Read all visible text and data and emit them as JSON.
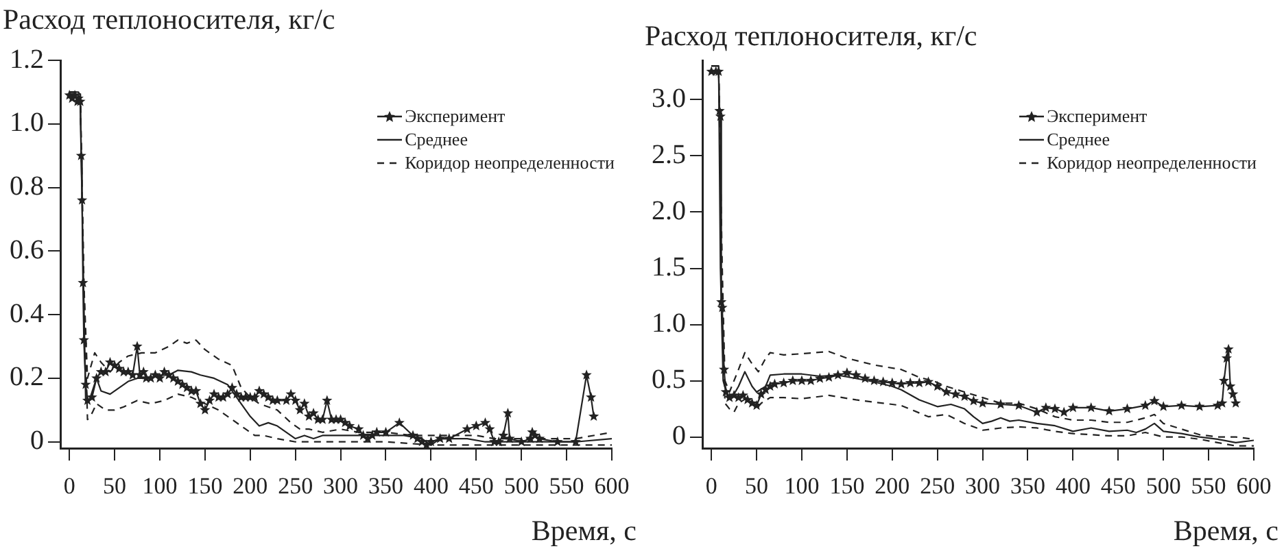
{
  "chart_data": [
    {
      "type": "line",
      "ylabel": "Расход теплоносителя, кг/с",
      "xlabel": "Время, с",
      "xlim": [
        -10,
        600
      ],
      "xticks": [
        0,
        50,
        100,
        150,
        200,
        250,
        300,
        350,
        400,
        450,
        500,
        550,
        600
      ],
      "ylim": [
        -0.02,
        1.2
      ],
      "yticks": [
        0,
        {
          "value": 0.2,
          "label": "0.2"
        },
        {
          "value": 0.4,
          "label": "0.4"
        },
        {
          "value": 0.6,
          "label": "0.6"
        },
        {
          "value": 0.8,
          "label": "0.8"
        },
        {
          "value": 1,
          "label": "1.0"
        },
        {
          "value": 1.2,
          "label": "1.2"
        }
      ],
      "grid": false,
      "legend": "top right",
      "series": [
        {
          "name": "Эксперимент",
          "color": "#222222",
          "marker": "star",
          "line_style": "solid",
          "x": [
            0,
            3,
            6,
            9,
            10,
            12,
            13,
            14,
            15,
            16,
            18,
            20,
            25,
            30,
            35,
            40,
            45,
            50,
            55,
            60,
            65,
            70,
            75,
            78,
            82,
            85,
            90,
            95,
            100,
            105,
            110,
            115,
            120,
            125,
            130,
            135,
            140,
            145,
            150,
            155,
            160,
            165,
            170,
            175,
            180,
            185,
            190,
            195,
            200,
            205,
            210,
            215,
            220,
            225,
            230,
            240,
            245,
            250,
            255,
            260,
            265,
            270,
            275,
            280,
            285,
            290,
            295,
            300,
            305,
            310,
            320,
            325,
            330,
            335,
            340,
            350,
            365,
            380,
            385,
            390,
            395,
            400,
            410,
            420,
            440,
            450,
            460,
            465,
            470,
            475,
            480,
            485,
            487,
            500,
            510,
            512,
            515,
            520,
            540,
            560,
            572,
            577,
            580
          ],
          "values": [
            1.09,
            1.08,
            1.09,
            1.07,
            1.08,
            1.07,
            0.9,
            0.76,
            0.5,
            0.32,
            0.18,
            0.13,
            0.14,
            0.2,
            0.22,
            0.22,
            0.25,
            0.24,
            0.23,
            0.22,
            0.22,
            0.21,
            0.3,
            0.21,
            0.22,
            0.2,
            0.2,
            0.21,
            0.2,
            0.22,
            0.21,
            0.2,
            0.19,
            0.18,
            0.17,
            0.16,
            0.16,
            0.12,
            0.1,
            0.13,
            0.15,
            0.14,
            0.14,
            0.15,
            0.17,
            0.15,
            0.14,
            0.14,
            0.14,
            0.14,
            0.16,
            0.15,
            0.14,
            0.13,
            0.13,
            0.13,
            0.15,
            0.13,
            0.1,
            0.12,
            0.08,
            0.09,
            0.07,
            0.07,
            0.13,
            0.07,
            0.07,
            0.07,
            0.06,
            0.05,
            0.04,
            0.02,
            0.01,
            0.02,
            0.03,
            0.03,
            0.06,
            0.02,
            0.01,
            0,
            -0.01,
            0,
            0.01,
            0.01,
            0.04,
            0.05,
            0.06,
            0.04,
            0,
            0,
            0.02,
            0.09,
            0.01,
            0,
            0.01,
            0.03,
            0.02,
            0.01,
            0,
            0,
            0.21,
            0.14,
            0.08
          ]
        },
        {
          "name": "Среднее",
          "color": "#222222",
          "marker": "none",
          "line_style": "solid",
          "x": [
            0,
            10,
            12,
            15,
            18,
            22,
            30,
            35,
            45,
            55,
            65,
            75,
            90,
            100,
            110,
            120,
            135,
            145,
            160,
            175,
            190,
            200,
            210,
            220,
            230,
            240,
            250,
            260,
            270,
            280,
            290,
            300,
            330,
            350,
            370,
            390,
            400,
            410,
            440,
            460,
            480,
            520,
            560,
            600
          ],
          "values": [
            1.1,
            1.1,
            1.09,
            0.6,
            0.13,
            0.13,
            0.2,
            0.16,
            0.15,
            0.17,
            0.19,
            0.2,
            0.2,
            0.21,
            0.21,
            0.225,
            0.22,
            0.21,
            0.2,
            0.18,
            0.12,
            0.08,
            0.05,
            0.06,
            0.05,
            0.03,
            0.01,
            0.02,
            0.01,
            0.02,
            0.02,
            0.02,
            0.02,
            0.02,
            0.02,
            0.01,
            -0.01,
            0.01,
            0.01,
            0,
            0,
            0,
            0,
            0.01
          ]
        },
        {
          "name": "Коридор неопределенности",
          "color": "#222222",
          "marker": "none",
          "line_style": "dashed",
          "x": [
            0,
            12,
            16,
            20,
            25,
            28,
            35,
            45,
            55,
            65,
            80,
            95,
            110,
            120,
            130,
            140,
            150,
            165,
            180,
            190,
            200,
            210,
            220,
            230,
            245,
            255,
            265,
            280,
            300,
            320,
            350,
            380,
            400,
            420,
            450,
            470,
            500,
            560,
            600
          ],
          "values": [
            1.1,
            1.1,
            0.5,
            0.2,
            0.25,
            0.28,
            0.25,
            0.22,
            0.25,
            0.27,
            0.28,
            0.28,
            0.3,
            0.32,
            0.31,
            0.32,
            0.29,
            0.26,
            0.24,
            0.17,
            0.14,
            0.12,
            0.11,
            0.1,
            0.06,
            0.04,
            0.04,
            0.03,
            0.04,
            0.03,
            0.03,
            0.02,
            0.02,
            0.02,
            0.02,
            0.01,
            0.01,
            0.01,
            0.03
          ]
        },
        {
          "color": "#222222",
          "marker": "none",
          "line_style": "dashed",
          "x": [
            0,
            12,
            16,
            20,
            25,
            30,
            40,
            50,
            60,
            75,
            90,
            105,
            120,
            135,
            150,
            165,
            180,
            195,
            205,
            215,
            230,
            250,
            270,
            300,
            350,
            400,
            450,
            500,
            600
          ],
          "values": [
            1.1,
            1.1,
            0.5,
            0.07,
            0.09,
            0.12,
            0.1,
            0.1,
            0.11,
            0.13,
            0.12,
            0.13,
            0.15,
            0.14,
            0.12,
            0.1,
            0.07,
            0.04,
            0.02,
            0.02,
            0.01,
            0,
            0,
            0,
            0,
            -0.01,
            -0.01,
            -0.01,
            -0.01
          ]
        }
      ]
    },
    {
      "type": "line",
      "ylabel": "Расход теплоносителя, кг/с",
      "xlabel": "Время, с",
      "xlim": [
        -10,
        600
      ],
      "xticks": [
        0,
        50,
        100,
        150,
        200,
        250,
        300,
        350,
        400,
        450,
        500,
        550,
        600
      ],
      "ylim": [
        -0.1,
        3.35
      ],
      "yticks": [
        0,
        0.5,
        {
          "value": 1,
          "label": "1.0"
        },
        1.5,
        {
          "value": 2,
          "label": "2.0"
        },
        2.5,
        {
          "value": 3,
          "label": "3.0"
        }
      ],
      "grid": false,
      "legend": "top right",
      "series": [
        {
          "name": "Эксперимент",
          "color": "#222222",
          "marker": "star",
          "line_style": "solid",
          "x": [
            0,
            5,
            8,
            9,
            10,
            11,
            12,
            14,
            16,
            20,
            25,
            30,
            35,
            40,
            45,
            50,
            55,
            60,
            65,
            70,
            80,
            90,
            100,
            110,
            120,
            130,
            140,
            150,
            160,
            170,
            180,
            190,
            200,
            210,
            220,
            230,
            240,
            250,
            260,
            270,
            280,
            290,
            300,
            320,
            340,
            360,
            370,
            380,
            390,
            400,
            420,
            440,
            460,
            480,
            490,
            500,
            520,
            540,
            560,
            565,
            567,
            570,
            572,
            574,
            577,
            580
          ],
          "values": [
            3.25,
            3.25,
            3.25,
            2.9,
            2.85,
            1.2,
            1.15,
            0.6,
            0.4,
            0.35,
            0.37,
            0.35,
            0.37,
            0.33,
            0.3,
            0.28,
            0.38,
            0.42,
            0.45,
            0.47,
            0.48,
            0.5,
            0.5,
            0.5,
            0.52,
            0.53,
            0.55,
            0.57,
            0.55,
            0.52,
            0.5,
            0.49,
            0.48,
            0.47,
            0.48,
            0.48,
            0.49,
            0.45,
            0.4,
            0.38,
            0.36,
            0.32,
            0.3,
            0.29,
            0.28,
            0.22,
            0.26,
            0.25,
            0.22,
            0.26,
            0.26,
            0.23,
            0.25,
            0.28,
            0.32,
            0.27,
            0.28,
            0.27,
            0.28,
            0.3,
            0.5,
            0.7,
            0.78,
            0.45,
            0.38,
            0.3
          ]
        },
        {
          "name": "Среднее",
          "color": "#222222",
          "marker": "none",
          "line_style": "solid",
          "x": [
            0,
            8,
            10,
            13,
            18,
            25,
            30,
            37,
            45,
            50,
            60,
            65,
            80,
            100,
            120,
            140,
            160,
            180,
            200,
            210,
            230,
            250,
            265,
            280,
            290,
            300,
            310,
            320,
            330,
            340,
            360,
            380,
            400,
            420,
            440,
            460,
            470,
            480,
            490,
            500,
            520,
            540,
            560,
            580,
            600
          ],
          "values": [
            3.3,
            3.3,
            1.5,
            0.5,
            0.35,
            0.38,
            0.45,
            0.58,
            0.45,
            0.4,
            0.45,
            0.55,
            0.56,
            0.56,
            0.54,
            0.55,
            0.52,
            0.49,
            0.45,
            0.42,
            0.33,
            0.27,
            0.29,
            0.25,
            0.18,
            0.12,
            0.14,
            0.17,
            0.14,
            0.15,
            0.12,
            0.1,
            0.05,
            0.08,
            0.05,
            0.06,
            0.04,
            0.07,
            0.12,
            0.05,
            0.03,
            0,
            -0.02,
            -0.05,
            -0.03
          ]
        },
        {
          "name": "Коридор неопределенности",
          "color": "#222222",
          "marker": "none",
          "line_style": "dashed",
          "x": [
            0,
            8,
            12,
            15,
            20,
            30,
            37,
            45,
            52,
            60,
            65,
            80,
            100,
            130,
            150,
            180,
            210,
            230,
            245,
            260,
            280,
            300,
            320,
            340,
            360,
            380,
            400,
            420,
            440,
            460,
            480,
            490,
            500,
            520,
            540,
            560,
            580,
            600
          ],
          "values": [
            3.3,
            3.3,
            1.5,
            0.5,
            0.4,
            0.6,
            0.75,
            0.65,
            0.58,
            0.7,
            0.75,
            0.73,
            0.74,
            0.76,
            0.7,
            0.64,
            0.6,
            0.53,
            0.5,
            0.45,
            0.4,
            0.35,
            0.3,
            0.3,
            0.25,
            0.18,
            0.15,
            0.15,
            0.13,
            0.13,
            0.17,
            0.2,
            0.12,
            0.07,
            0.02,
            0,
            0,
            -0.02
          ]
        },
        {
          "color": "#222222",
          "marker": "none",
          "line_style": "dashed",
          "x": [
            0,
            8,
            12,
            15,
            20,
            25,
            30,
            40,
            50,
            55,
            65,
            80,
            100,
            130,
            160,
            190,
            210,
            240,
            260,
            280,
            300,
            320,
            340,
            360,
            380,
            400,
            420,
            440,
            460,
            480,
            500,
            520,
            540,
            560,
            580,
            600
          ],
          "values": [
            3.3,
            3.3,
            1.2,
            0.3,
            0.25,
            0.22,
            0.3,
            0.35,
            0.25,
            0.3,
            0.35,
            0.35,
            0.34,
            0.37,
            0.33,
            0.3,
            0.28,
            0.18,
            0.2,
            0.12,
            0.06,
            0.08,
            0.09,
            0.08,
            0.05,
            0.03,
            0.02,
            0.01,
            0.01,
            0.04,
            0,
            0,
            -0.02,
            -0.05,
            -0.08,
            -0.08
          ]
        }
      ]
    }
  ]
}
